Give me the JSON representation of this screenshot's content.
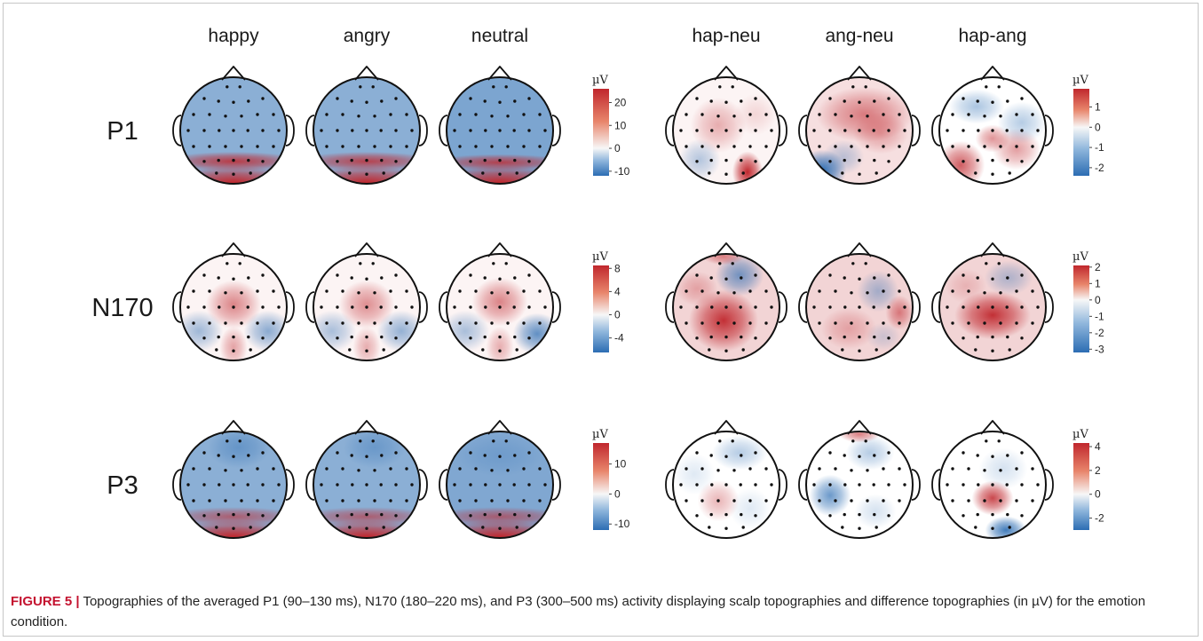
{
  "figure": {
    "columns": [
      "happy",
      "angry",
      "neutral",
      "hap-neu",
      "ang-neu",
      "hap-ang"
    ],
    "rows": [
      {
        "label": "P1",
        "conditions": {
          "unit": "µV",
          "ticks": [
            "20",
            "10",
            "0",
            "-10"
          ],
          "tick_values": [
            20,
            10,
            0,
            -10
          ],
          "range": [
            -12,
            26
          ]
        },
        "differences": {
          "unit": "µV",
          "ticks": [
            "1",
            "0",
            "-1",
            "-2"
          ],
          "tick_values": [
            1,
            0,
            -1,
            -2
          ],
          "range": [
            -2.4,
            1.9
          ]
        }
      },
      {
        "label": "N170",
        "conditions": {
          "unit": "µV",
          "ticks": [
            "8",
            "4",
            "0",
            "-4"
          ],
          "tick_values": [
            8,
            4,
            0,
            -4
          ],
          "range": [
            -6.5,
            8.5
          ]
        },
        "differences": {
          "unit": "µV",
          "ticks": [
            "2",
            "1",
            "0",
            "-1",
            "-2",
            "-3"
          ],
          "tick_values": [
            2,
            1,
            0,
            -1,
            -2,
            -3
          ],
          "range": [
            -3.2,
            2.1
          ]
        }
      },
      {
        "label": "P3",
        "conditions": {
          "unit": "µV",
          "ticks": [
            "10",
            "0",
            "-10"
          ],
          "tick_values": [
            10,
            0,
            -10
          ],
          "range": [
            -12,
            17
          ]
        },
        "differences": {
          "unit": "µV",
          "ticks": [
            "4",
            "2",
            "0",
            "-2"
          ],
          "tick_values": [
            4,
            2,
            0,
            -2
          ],
          "range": [
            -3,
            4.3
          ]
        }
      }
    ],
    "colors": {
      "negative": "#2c6db3",
      "neutral": "#f7f7f7",
      "positive": "#c0272d"
    }
  },
  "caption": {
    "figure_number": "FIGURE 5",
    "separator": "|",
    "text": "Topographies of the averaged P1 (90–130 ms), N170 (180–220 ms), and P3 (300–500 ms) activity displaying scalp topographies and difference topographies (in µV) for the emotion condition."
  }
}
